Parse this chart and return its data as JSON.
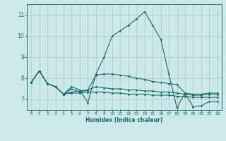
{
  "title": "",
  "xlabel": "Humidex (Indice chaleur)",
  "bg_color": "#cce8e8",
  "grid_color": "#aacfcf",
  "line_color": "#1a6b6b",
  "xlim": [
    -0.5,
    23.5
  ],
  "ylim": [
    6.5,
    11.5
  ],
  "yticks": [
    7,
    8,
    9,
    10,
    11
  ],
  "xticks": [
    0,
    1,
    2,
    3,
    4,
    5,
    6,
    7,
    8,
    9,
    10,
    11,
    12,
    13,
    14,
    15,
    16,
    17,
    18,
    19,
    20,
    21,
    22,
    23
  ],
  "x": [
    0,
    1,
    2,
    3,
    4,
    5,
    6,
    7,
    8,
    9,
    10,
    11,
    12,
    13,
    14,
    15,
    16,
    17,
    18,
    19,
    20,
    21,
    22,
    23
  ],
  "line1": [
    7.8,
    8.35,
    7.75,
    7.6,
    7.25,
    7.6,
    7.45,
    6.85,
    8.2,
    9.0,
    10.0,
    10.25,
    10.5,
    10.8,
    11.15,
    10.5,
    9.85,
    8.2,
    6.6,
    7.3,
    6.65,
    6.7,
    6.9,
    6.9
  ],
  "line2": [
    7.8,
    8.35,
    7.75,
    7.6,
    7.25,
    7.35,
    7.4,
    7.45,
    8.15,
    8.2,
    8.2,
    8.15,
    8.1,
    8.0,
    7.95,
    7.85,
    7.8,
    7.75,
    7.7,
    7.3,
    7.25,
    7.25,
    7.3,
    7.3
  ],
  "line3": [
    7.8,
    8.35,
    7.75,
    7.6,
    7.25,
    7.5,
    7.35,
    7.45,
    7.6,
    7.55,
    7.5,
    7.5,
    7.45,
    7.45,
    7.4,
    7.4,
    7.35,
    7.35,
    7.3,
    7.25,
    7.2,
    7.2,
    7.25,
    7.25
  ],
  "line4": [
    7.8,
    8.35,
    7.75,
    7.6,
    7.25,
    7.3,
    7.3,
    7.35,
    7.35,
    7.35,
    7.3,
    7.3,
    7.25,
    7.25,
    7.25,
    7.2,
    7.2,
    7.2,
    7.15,
    7.15,
    7.1,
    7.1,
    7.1,
    7.1
  ]
}
